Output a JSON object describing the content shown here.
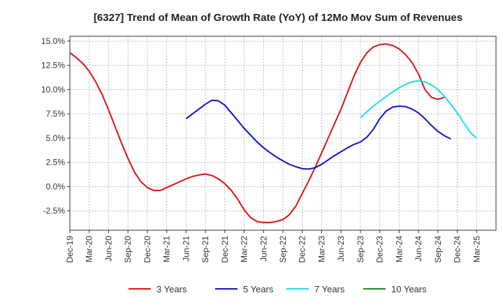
{
  "chart_data": {
    "type": "line",
    "title": "[6327]  Trend of Mean of Growth Rate (YoY) of 12Mo Mov Sum of Revenues",
    "xlabel": "",
    "ylabel": "",
    "ylim": [
      -4.5,
      15.5
    ],
    "yticks": [
      15.0,
      12.5,
      10.0,
      7.5,
      5.0,
      2.5,
      0.0,
      -2.5
    ],
    "ytick_labels": [
      "15.0%",
      "12.5%",
      "10.0%",
      "7.5%",
      "5.0%",
      "2.5%",
      "0.0%",
      "-2.5%"
    ],
    "xlim": [
      0,
      66
    ],
    "xtick_labels": [
      "Dec-19",
      "Mar-20",
      "Jun-20",
      "Sep-20",
      "Dec-20",
      "Mar-21",
      "Jun-21",
      "Sep-21",
      "Dec-21",
      "Mar-22",
      "Jun-22",
      "Sep-22",
      "Dec-22",
      "Mar-23",
      "Jun-23",
      "Sep-23",
      "Dec-23",
      "Mar-24",
      "Jun-24",
      "Sep-24",
      "Dec-24",
      "Mar-25"
    ],
    "grid": true,
    "legend_position": "bottom",
    "series": [
      {
        "name": "3 Years",
        "color": "#dd1111",
        "start": 0,
        "values": [
          13.8,
          13.3,
          12.7,
          11.9,
          10.8,
          9.5,
          7.9,
          6.2,
          4.5,
          2.9,
          1.5,
          0.5,
          -0.1,
          -0.4,
          -0.4,
          -0.1,
          0.2,
          0.5,
          0.8,
          1.05,
          1.2,
          1.3,
          1.15,
          0.8,
          0.3,
          -0.4,
          -1.3,
          -2.4,
          -3.2,
          -3.6,
          -3.7,
          -3.7,
          -3.6,
          -3.4,
          -2.9,
          -2.0,
          -0.7,
          0.6,
          2.0,
          3.5,
          5.0,
          6.5,
          8.0,
          9.7,
          11.4,
          12.8,
          13.8,
          14.4,
          14.65,
          14.7,
          14.55,
          14.2,
          13.6,
          12.8,
          11.6,
          10.0,
          9.2,
          9.0,
          9.2
        ]
      },
      {
        "name": "5 Years",
        "color": "#1111cc",
        "start": 18,
        "values": [
          7.0,
          7.5,
          8.0,
          8.5,
          8.9,
          8.85,
          8.4,
          7.6,
          6.8,
          6.0,
          5.3,
          4.6,
          4.0,
          3.5,
          3.05,
          2.65,
          2.3,
          2.05,
          1.85,
          1.8,
          1.95,
          2.3,
          2.75,
          3.2,
          3.6,
          4.0,
          4.35,
          4.6,
          5.1,
          5.9,
          7.0,
          7.8,
          8.2,
          8.3,
          8.25,
          8.0,
          7.6,
          7.0,
          6.3,
          5.7,
          5.25,
          4.9
        ]
      },
      {
        "name": "7 Years",
        "color": "#22dddd",
        "start": 45,
        "values": [
          7.1,
          7.7,
          8.3,
          8.8,
          9.3,
          9.75,
          10.2,
          10.55,
          10.8,
          10.9,
          10.8,
          10.5,
          10.0,
          9.3,
          8.5,
          7.6,
          6.6,
          5.6,
          5.0
        ]
      },
      {
        "name": "10 Years",
        "color": "#228822",
        "start": 0,
        "values": []
      }
    ]
  }
}
